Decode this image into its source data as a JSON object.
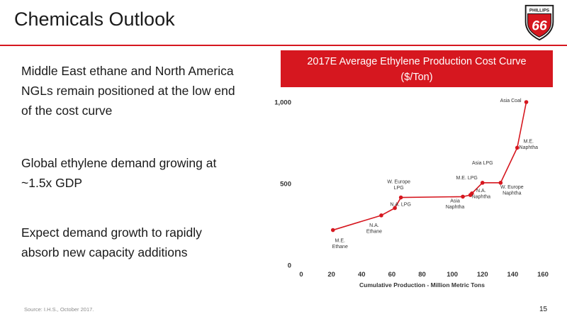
{
  "page": {
    "title": "Chemicals Outlook",
    "bullets": [
      "Middle East ethane and North America NGLs remain positioned at the low end of the cost curve",
      "Global ethylene demand growing at ~1.5x GDP",
      "Expect demand growth to rapidly absorb new capacity additions"
    ],
    "source": "Source: I.H.S., October 2017.",
    "page_number": "15",
    "logo": {
      "top_text": "PHILLIPS",
      "number": "66",
      "icon": "phillips-66-shield-logo"
    },
    "colors": {
      "accent": "#d6171f",
      "line": "#d6171f"
    }
  },
  "chart_data": {
    "type": "line",
    "title": "2017E Average Ethylene Production Cost Curve",
    "subtitle": "($/Ton)",
    "xlabel": "Cumulative Production - Million Metric Tons",
    "ylabel": "",
    "xlim": [
      0,
      160
    ],
    "ylim": [
      0,
      1000
    ],
    "xticks": [
      "0",
      "20",
      "40",
      "60",
      "80",
      "100",
      "120",
      "140",
      "160"
    ],
    "yticks": [
      "0",
      "500",
      "1,000"
    ],
    "grid": false,
    "x": [
      21,
      53,
      62,
      66,
      107,
      112,
      113,
      120,
      132,
      143,
      149
    ],
    "y": [
      215,
      305,
      350,
      415,
      420,
      430,
      440,
      505,
      505,
      720,
      1000
    ],
    "labels": [
      {
        "text": "M.E. Ethane",
        "x": 21,
        "y": 215
      },
      {
        "text": "N.A. Ethane",
        "x": 53,
        "y": 305
      },
      {
        "text": "N.A. LPG",
        "x": 62,
        "y": 350
      },
      {
        "text": "W. Europe LPG",
        "x": 66,
        "y": 415
      },
      {
        "text": "Asia Naphtha",
        "x": 107,
        "y": 420
      },
      {
        "text": "M.E. LPG",
        "x": 112,
        "y": 430
      },
      {
        "text": "N.A. Naphtha",
        "x": 113,
        "y": 440
      },
      {
        "text": "Asia LPG",
        "x": 120,
        "y": 505
      },
      {
        "text": "W. Europe Naphtha",
        "x": 132,
        "y": 505
      },
      {
        "text": "M.E. Naphtha",
        "x": 143,
        "y": 720
      },
      {
        "text": "Asia Coal",
        "x": 149,
        "y": 1000
      }
    ]
  }
}
